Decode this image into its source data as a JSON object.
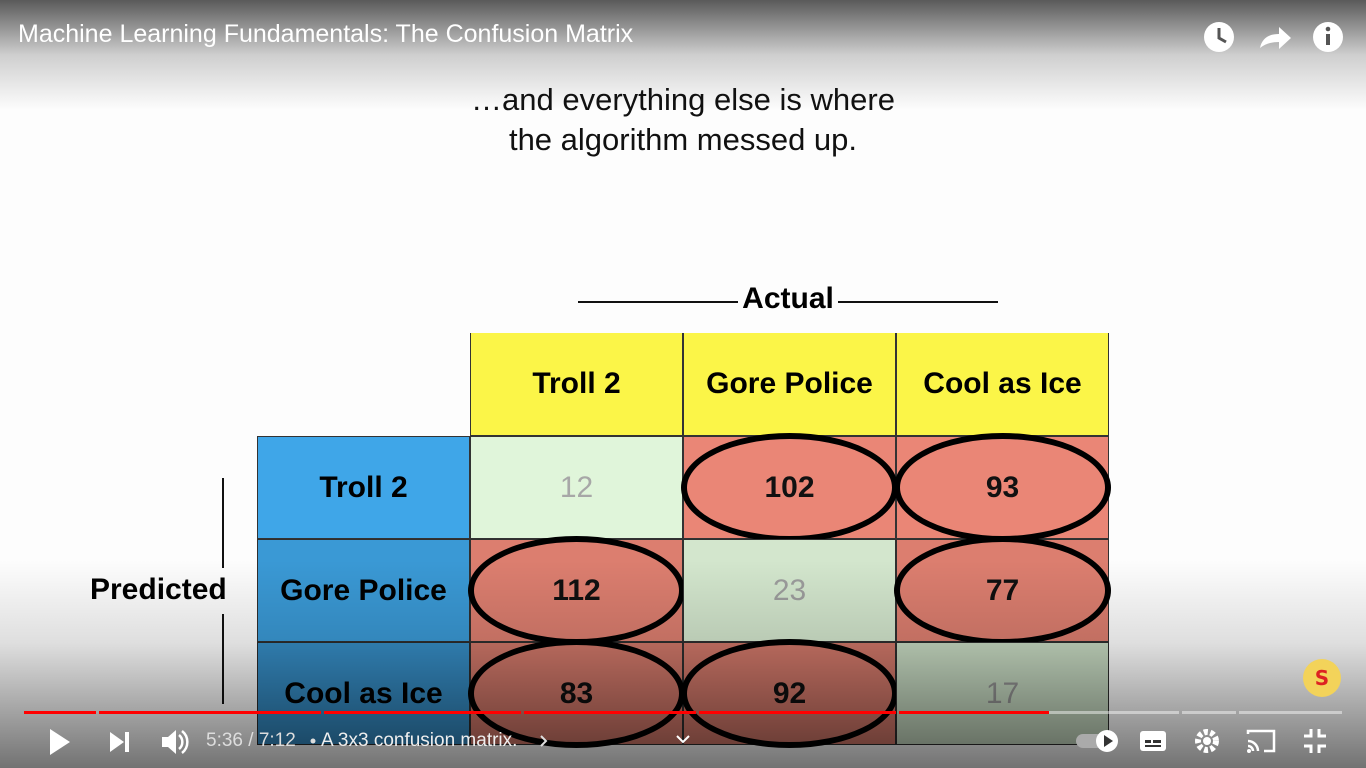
{
  "player": {
    "title": "Machine Learning Fundamentals: The Confusion Matrix",
    "time": "5:36 / 7:12",
    "chapter": "A 3x3 confusion matrix."
  },
  "slide": {
    "caption": [
      "…and everything else is where",
      "the algorithm messed up."
    ],
    "column_axis": "Actual",
    "row_axis": "Predicted",
    "columns": [
      "Troll 2",
      "Gore Police",
      "Cool as Ice"
    ],
    "rows": [
      "Troll 2",
      "Gore Police",
      "Cool as Ice"
    ],
    "matrix": [
      [
        12,
        102,
        93
      ],
      [
        112,
        23,
        77
      ],
      [
        83,
        92,
        17
      ]
    ]
  }
}
